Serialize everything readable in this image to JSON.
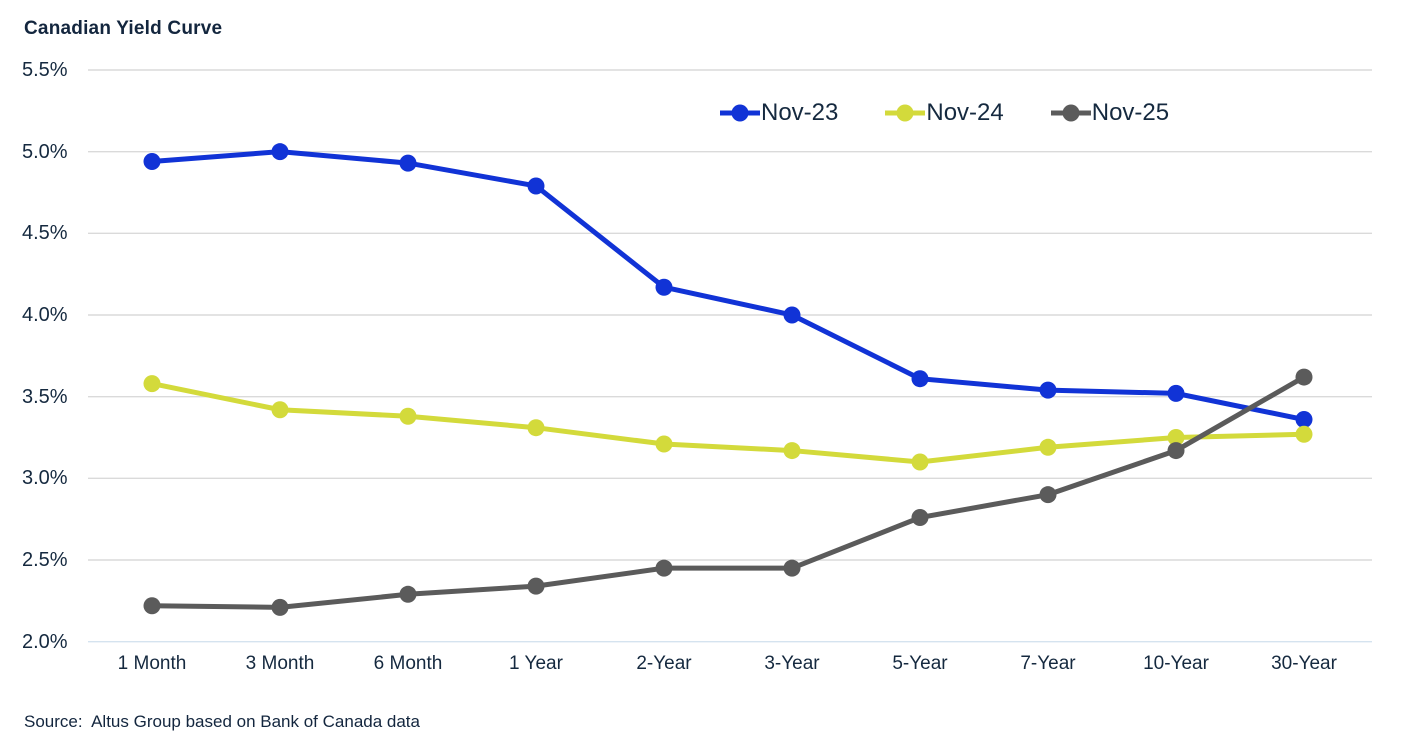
{
  "chart": {
    "title": "Canadian Yield Curve",
    "source_note": "Source:  Altus Group based on Bank of Canada data"
  },
  "colors": {
    "text": "#13263e",
    "gridline": "#dadada",
    "baseline": "#d5e3ef",
    "background": "#ffffff"
  },
  "chart_data": {
    "type": "line",
    "title": "Canadian Yield Curve",
    "xlabel": "",
    "ylabel": "",
    "y_unit": "%",
    "ylim": [
      2.0,
      5.5
    ],
    "grid": true,
    "legend_position": "top-right",
    "categories": [
      "1 Month",
      "3 Month",
      "6 Month",
      "1 Year",
      "2-Year",
      "3-Year",
      "5-Year",
      "7-Year",
      "10-Year",
      "30-Year"
    ],
    "y_tick_labels": [
      "5.5%",
      "5.0%",
      "4.5%",
      "4.0%",
      "3.5%",
      "3.0%",
      "2.5%",
      "2.0%"
    ],
    "y_tick_values": [
      5.5,
      5.0,
      4.5,
      4.0,
      3.5,
      3.0,
      2.5,
      2.0
    ],
    "series": [
      {
        "name": "Nov-23",
        "color": "#1133d6",
        "values": [
          4.94,
          5.0,
          4.93,
          4.79,
          4.17,
          4.0,
          3.61,
          3.54,
          3.52,
          3.36
        ]
      },
      {
        "name": "Nov-24",
        "color": "#d3da3b",
        "values": [
          3.58,
          3.42,
          3.38,
          3.31,
          3.21,
          3.17,
          3.1,
          3.19,
          3.25,
          3.27
        ]
      },
      {
        "name": "Nov-25",
        "color": "#5b5b5b",
        "values": [
          2.22,
          2.21,
          2.29,
          2.34,
          2.45,
          2.45,
          2.76,
          2.9,
          3.17,
          3.62
        ]
      }
    ],
    "source": "Source:  Altus Group based on Bank of Canada data"
  }
}
